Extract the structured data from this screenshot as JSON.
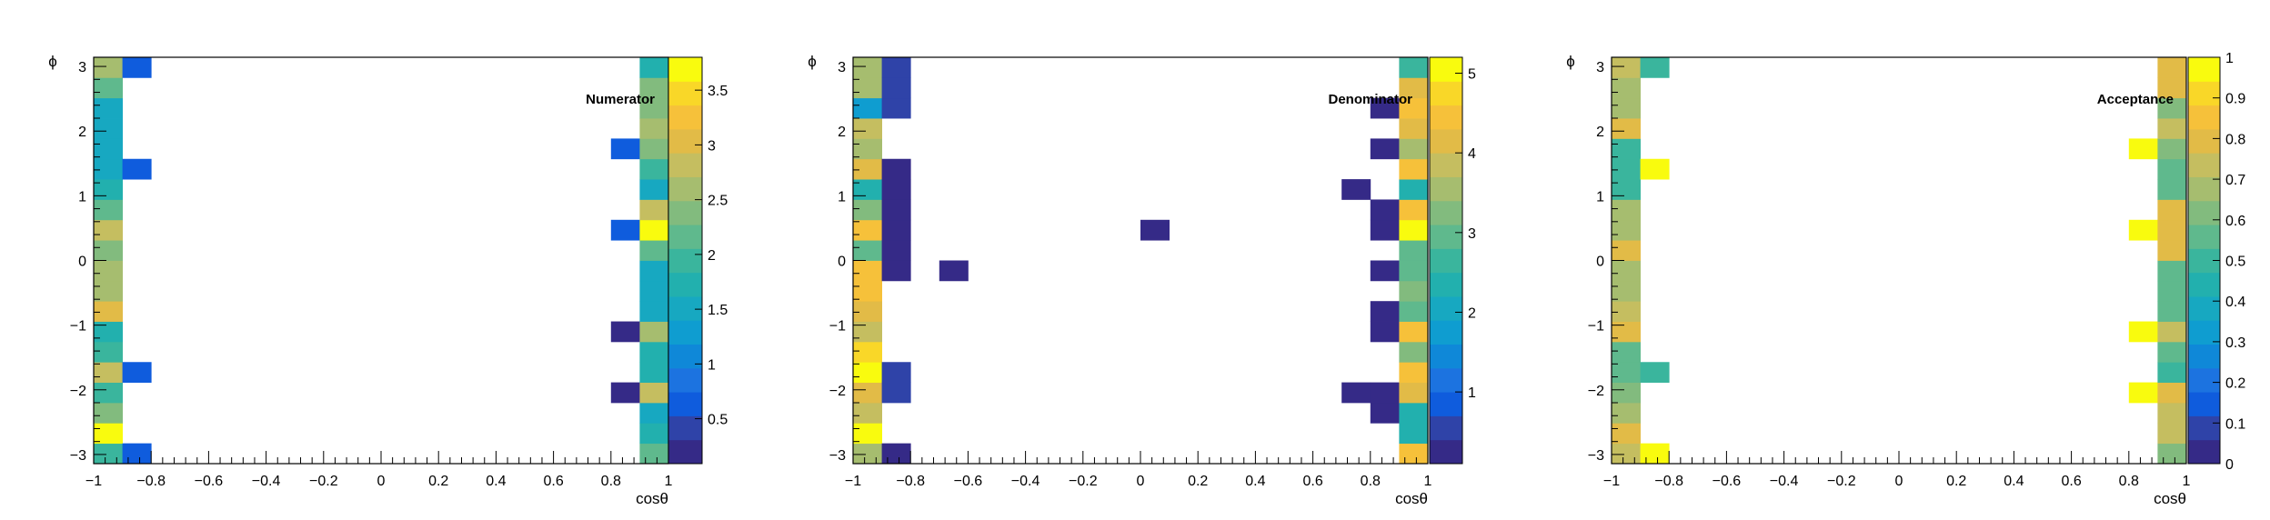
{
  "colors": {
    "palette": [
      "#352a87",
      "#2f43a8",
      "#0f5cdd",
      "#1c73e0",
      "#0f88d8",
      "#0f9dd0",
      "#17a8c1",
      "#22b0ae",
      "#3ab59d",
      "#5fb98d",
      "#82bb7e",
      "#a6bd6f",
      "#c5be60",
      "#e2bb47",
      "#f6c13a",
      "#f9d728",
      "#f9fb0e"
    ]
  },
  "chart_data": [
    {
      "type": "heatmap",
      "title": "Numerator",
      "xlabel": "cosθ",
      "ylabel": "ϕ",
      "xlim": [
        -1,
        1
      ],
      "ylim": [
        -3.14159,
        3.14159
      ],
      "zlim": [
        0.09,
        3.8
      ],
      "x_ticks": [
        "−1",
        "−0.8",
        "−0.6",
        "−0.4",
        "−0.2",
        "0",
        "0.2",
        "0.4",
        "0.6",
        "0.8",
        "1"
      ],
      "y_ticks": [
        "−3",
        "−2",
        "−1",
        "0",
        "1",
        "2",
        "3"
      ],
      "z_ticks": [
        "0.5",
        "1",
        "1.5",
        "2",
        "2.5",
        "3",
        "3.5"
      ],
      "x_bins": 20,
      "y_bins": 20,
      "cells": [
        {
          "xb": 0,
          "yb": 0,
          "v": 1.9
        },
        {
          "xb": 0,
          "yb": 1,
          "v": 3.8
        },
        {
          "xb": 0,
          "yb": 2,
          "v": 2.3
        },
        {
          "xb": 0,
          "yb": 3,
          "v": 1.9
        },
        {
          "xb": 0,
          "yb": 4,
          "v": 2.8
        },
        {
          "xb": 0,
          "yb": 5,
          "v": 2.0
        },
        {
          "xb": 0,
          "yb": 6,
          "v": 1.7
        },
        {
          "xb": 0,
          "yb": 7,
          "v": 3.0
        },
        {
          "xb": 0,
          "yb": 8,
          "v": 2.6
        },
        {
          "xb": 0,
          "yb": 9,
          "v": 2.5
        },
        {
          "xb": 0,
          "yb": 10,
          "v": 2.3
        },
        {
          "xb": 0,
          "yb": 11,
          "v": 2.8
        },
        {
          "xb": 0,
          "yb": 12,
          "v": 2.1
        },
        {
          "xb": 0,
          "yb": 13,
          "v": 1.7
        },
        {
          "xb": 0,
          "yb": 14,
          "v": 1.4
        },
        {
          "xb": 0,
          "yb": 15,
          "v": 1.6
        },
        {
          "xb": 0,
          "yb": 16,
          "v": 1.5
        },
        {
          "xb": 0,
          "yb": 17,
          "v": 1.6
        },
        {
          "xb": 0,
          "yb": 18,
          "v": 2.1
        },
        {
          "xb": 0,
          "yb": 19,
          "v": 2.6
        },
        {
          "xb": 1,
          "yb": 0,
          "v": 0.6
        },
        {
          "xb": 1,
          "yb": 4,
          "v": 0.6
        },
        {
          "xb": 1,
          "yb": 14,
          "v": 0.6
        },
        {
          "xb": 1,
          "yb": 19,
          "v": 0.6
        },
        {
          "xb": 18,
          "yb": 3,
          "v": 0.3
        },
        {
          "xb": 18,
          "yb": 6,
          "v": 0.3
        },
        {
          "xb": 18,
          "yb": 11,
          "v": 0.6
        },
        {
          "xb": 18,
          "yb": 15,
          "v": 0.6
        },
        {
          "xb": 19,
          "yb": 0,
          "v": 2.2
        },
        {
          "xb": 19,
          "yb": 1,
          "v": 1.7
        },
        {
          "xb": 19,
          "yb": 2,
          "v": 1.6
        },
        {
          "xb": 19,
          "yb": 3,
          "v": 2.9
        },
        {
          "xb": 19,
          "yb": 4,
          "v": 1.7
        },
        {
          "xb": 19,
          "yb": 5,
          "v": 1.8
        },
        {
          "xb": 19,
          "yb": 6,
          "v": 2.5
        },
        {
          "xb": 19,
          "yb": 7,
          "v": 1.5
        },
        {
          "xb": 19,
          "yb": 8,
          "v": 1.5
        },
        {
          "xb": 19,
          "yb": 9,
          "v": 1.6
        },
        {
          "xb": 19,
          "yb": 10,
          "v": 2.1
        },
        {
          "xb": 19,
          "yb": 11,
          "v": 3.8
        },
        {
          "xb": 19,
          "yb": 12,
          "v": 2.9
        },
        {
          "xb": 19,
          "yb": 13,
          "v": 1.5
        },
        {
          "xb": 19,
          "yb": 14,
          "v": 2.0
        },
        {
          "xb": 19,
          "yb": 15,
          "v": 2.4
        },
        {
          "xb": 19,
          "yb": 16,
          "v": 2.6
        },
        {
          "xb": 19,
          "yb": 17,
          "v": 2.3
        },
        {
          "xb": 19,
          "yb": 18,
          "v": 2.4
        },
        {
          "xb": 19,
          "yb": 19,
          "v": 1.7
        }
      ]
    },
    {
      "type": "heatmap",
      "title": "Denominator",
      "xlabel": "cosθ",
      "ylabel": "ϕ",
      "xlim": [
        -1,
        1
      ],
      "ylim": [
        -3.14159,
        3.14159
      ],
      "zlim": [
        0.1,
        5.2
      ],
      "x_ticks": [
        "−1",
        "−0.8",
        "−0.6",
        "−0.4",
        "−0.2",
        "0",
        "0.2",
        "0.4",
        "0.6",
        "0.8",
        "1"
      ],
      "y_ticks": [
        "−3",
        "−2",
        "−1",
        "0",
        "1",
        "2",
        "3"
      ],
      "z_ticks": [
        "1",
        "2",
        "3",
        "4",
        "5"
      ],
      "x_bins": 20,
      "y_bins": 20,
      "cells": [
        {
          "xb": 0,
          "yb": 0,
          "v": 3.5
        },
        {
          "xb": 0,
          "yb": 1,
          "v": 5.0
        },
        {
          "xb": 0,
          "yb": 2,
          "v": 3.9
        },
        {
          "xb": 0,
          "yb": 3,
          "v": 4.1
        },
        {
          "xb": 0,
          "yb": 4,
          "v": 5.2
        },
        {
          "xb": 0,
          "yb": 5,
          "v": 4.8
        },
        {
          "xb": 0,
          "yb": 6,
          "v": 3.9
        },
        {
          "xb": 0,
          "yb": 7,
          "v": 4.2
        },
        {
          "xb": 0,
          "yb": 8,
          "v": 4.5
        },
        {
          "xb": 0,
          "yb": 9,
          "v": 4.5
        },
        {
          "xb": 0,
          "yb": 10,
          "v": 3.0
        },
        {
          "xb": 0,
          "yb": 11,
          "v": 4.5
        },
        {
          "xb": 0,
          "yb": 12,
          "v": 3.4
        },
        {
          "xb": 0,
          "yb": 13,
          "v": 2.3
        },
        {
          "xb": 0,
          "yb": 14,
          "v": 4.0
        },
        {
          "xb": 0,
          "yb": 15,
          "v": 3.5
        },
        {
          "xb": 0,
          "yb": 16,
          "v": 3.8
        },
        {
          "xb": 0,
          "yb": 17,
          "v": 1.8
        },
        {
          "xb": 0,
          "yb": 18,
          "v": 3.5
        },
        {
          "xb": 0,
          "yb": 19,
          "v": 3.6
        },
        {
          "xb": 1,
          "yb": 0,
          "v": 0.2
        },
        {
          "xb": 1,
          "yb": 3,
          "v": 0.4
        },
        {
          "xb": 1,
          "yb": 4,
          "v": 0.6
        },
        {
          "xb": 1,
          "yb": 9,
          "v": 0.2
        },
        {
          "xb": 1,
          "yb": 10,
          "v": 0.2
        },
        {
          "xb": 1,
          "yb": 11,
          "v": 0.2
        },
        {
          "xb": 1,
          "yb": 12,
          "v": 0.2
        },
        {
          "xb": 1,
          "yb": 13,
          "v": 0.2
        },
        {
          "xb": 1,
          "yb": 14,
          "v": 0.2
        },
        {
          "xb": 1,
          "yb": 17,
          "v": 0.7
        },
        {
          "xb": 1,
          "yb": 18,
          "v": 0.7
        },
        {
          "xb": 1,
          "yb": 19,
          "v": 0.7
        },
        {
          "xb": 3,
          "yb": 9,
          "v": 0.2
        },
        {
          "xb": 10,
          "yb": 11,
          "v": 0.2
        },
        {
          "xb": 17,
          "yb": 3,
          "v": 0.2
        },
        {
          "xb": 17,
          "yb": 13,
          "v": 0.2
        },
        {
          "xb": 18,
          "yb": 2,
          "v": 0.2
        },
        {
          "xb": 18,
          "yb": 3,
          "v": 0.2
        },
        {
          "xb": 18,
          "yb": 6,
          "v": 0.2
        },
        {
          "xb": 18,
          "yb": 7,
          "v": 0.2
        },
        {
          "xb": 18,
          "yb": 9,
          "v": 0.2
        },
        {
          "xb": 18,
          "yb": 11,
          "v": 0.2
        },
        {
          "xb": 18,
          "yb": 12,
          "v": 0.2
        },
        {
          "xb": 18,
          "yb": 15,
          "v": 0.2
        },
        {
          "xb": 18,
          "yb": 17,
          "v": 0.2
        },
        {
          "xb": 19,
          "yb": 0,
          "v": 4.3
        },
        {
          "xb": 19,
          "yb": 1,
          "v": 2.5
        },
        {
          "xb": 19,
          "yb": 2,
          "v": 2.3
        },
        {
          "xb": 19,
          "yb": 3,
          "v": 4.2
        },
        {
          "xb": 19,
          "yb": 4,
          "v": 4.6
        },
        {
          "xb": 19,
          "yb": 5,
          "v": 3.2
        },
        {
          "xb": 19,
          "yb": 6,
          "v": 4.3
        },
        {
          "xb": 19,
          "yb": 7,
          "v": 3.1
        },
        {
          "xb": 19,
          "yb": 8,
          "v": 3.2
        },
        {
          "xb": 19,
          "yb": 9,
          "v": 3.0
        },
        {
          "xb": 19,
          "yb": 10,
          "v": 3.0
        },
        {
          "xb": 19,
          "yb": 11,
          "v": 5.2
        },
        {
          "xb": 19,
          "yb": 12,
          "v": 4.3
        },
        {
          "xb": 19,
          "yb": 13,
          "v": 2.5
        },
        {
          "xb": 19,
          "yb": 14,
          "v": 4.4
        },
        {
          "xb": 19,
          "yb": 15,
          "v": 3.7
        },
        {
          "xb": 19,
          "yb": 16,
          "v": 4.1
        },
        {
          "xb": 19,
          "yb": 17,
          "v": 4.4
        },
        {
          "xb": 19,
          "yb": 18,
          "v": 4.0
        },
        {
          "xb": 19,
          "yb": 19,
          "v": 2.6
        }
      ]
    },
    {
      "type": "heatmap",
      "title": "Acceptance",
      "xlabel": "cosθ",
      "ylabel": "ϕ",
      "xlim": [
        -1,
        1
      ],
      "ylim": [
        -3.14159,
        3.14159
      ],
      "zlim": [
        0,
        1
      ],
      "x_ticks": [
        "−1",
        "−0.8",
        "−0.6",
        "−0.4",
        "−0.2",
        "0",
        "0.2",
        "0.4",
        "0.6",
        "0.8",
        "1"
      ],
      "y_ticks": [
        "−3",
        "−2",
        "−1",
        "0",
        "1",
        "2",
        "3"
      ],
      "z_ticks": [
        "0",
        "0.1",
        "0.2",
        "0.3",
        "0.4",
        "0.5",
        "0.6",
        "0.7",
        "0.8",
        "0.9",
        "1"
      ],
      "x_bins": 20,
      "y_bins": 20,
      "cells": [
        {
          "xb": 0,
          "yb": 0,
          "v": 0.75
        },
        {
          "xb": 0,
          "yb": 1,
          "v": 0.78
        },
        {
          "xb": 0,
          "yb": 2,
          "v": 0.68
        },
        {
          "xb": 0,
          "yb": 3,
          "v": 0.62
        },
        {
          "xb": 0,
          "yb": 4,
          "v": 0.55
        },
        {
          "xb": 0,
          "yb": 5,
          "v": 0.55
        },
        {
          "xb": 0,
          "yb": 6,
          "v": 0.78
        },
        {
          "xb": 0,
          "yb": 7,
          "v": 0.72
        },
        {
          "xb": 0,
          "yb": 8,
          "v": 0.65
        },
        {
          "xb": 0,
          "yb": 9,
          "v": 0.65
        },
        {
          "xb": 0,
          "yb": 10,
          "v": 0.82
        },
        {
          "xb": 0,
          "yb": 11,
          "v": 0.65
        },
        {
          "xb": 0,
          "yb": 12,
          "v": 0.68
        },
        {
          "xb": 0,
          "yb": 13,
          "v": 0.5
        },
        {
          "xb": 0,
          "yb": 14,
          "v": 0.5
        },
        {
          "xb": 0,
          "yb": 15,
          "v": 0.5
        },
        {
          "xb": 0,
          "yb": 16,
          "v": 0.78
        },
        {
          "xb": 0,
          "yb": 17,
          "v": 0.65
        },
        {
          "xb": 0,
          "yb": 18,
          "v": 0.68
        },
        {
          "xb": 0,
          "yb": 19,
          "v": 0.72
        },
        {
          "xb": 1,
          "yb": 0,
          "v": 1.0
        },
        {
          "xb": 1,
          "yb": 4,
          "v": 0.5
        },
        {
          "xb": 1,
          "yb": 14,
          "v": 1.0
        },
        {
          "xb": 1,
          "yb": 19,
          "v": 0.5
        },
        {
          "xb": 18,
          "yb": 3,
          "v": 1.0
        },
        {
          "xb": 18,
          "yb": 6,
          "v": 1.0
        },
        {
          "xb": 18,
          "yb": 11,
          "v": 1.0
        },
        {
          "xb": 18,
          "yb": 15,
          "v": 1.0
        },
        {
          "xb": 19,
          "yb": 0,
          "v": 0.62
        },
        {
          "xb": 19,
          "yb": 1,
          "v": 0.72
        },
        {
          "xb": 19,
          "yb": 2,
          "v": 0.72
        },
        {
          "xb": 19,
          "yb": 3,
          "v": 0.78
        },
        {
          "xb": 19,
          "yb": 4,
          "v": 0.5
        },
        {
          "xb": 19,
          "yb": 5,
          "v": 0.55
        },
        {
          "xb": 19,
          "yb": 6,
          "v": 0.72
        },
        {
          "xb": 19,
          "yb": 7,
          "v": 0.55
        },
        {
          "xb": 19,
          "yb": 8,
          "v": 0.55
        },
        {
          "xb": 19,
          "yb": 9,
          "v": 0.55
        },
        {
          "xb": 19,
          "yb": 10,
          "v": 0.78
        },
        {
          "xb": 19,
          "yb": 11,
          "v": 0.78
        },
        {
          "xb": 19,
          "yb": 12,
          "v": 0.78
        },
        {
          "xb": 19,
          "yb": 13,
          "v": 0.55
        },
        {
          "xb": 19,
          "yb": 14,
          "v": 0.55
        },
        {
          "xb": 19,
          "yb": 15,
          "v": 0.62
        },
        {
          "xb": 19,
          "yb": 16,
          "v": 0.72
        },
        {
          "xb": 19,
          "yb": 17,
          "v": 0.62
        },
        {
          "xb": 19,
          "yb": 18,
          "v": 0.78
        },
        {
          "xb": 19,
          "yb": 19,
          "v": 0.78
        }
      ]
    }
  ]
}
